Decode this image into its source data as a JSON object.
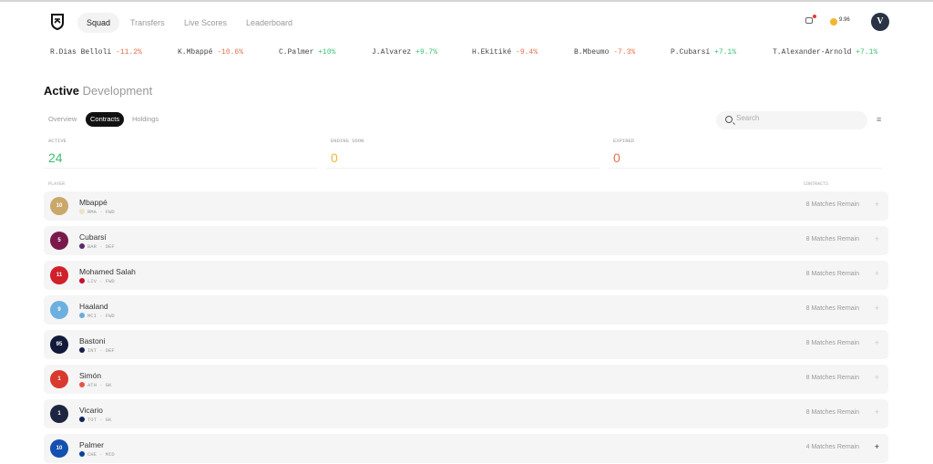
{
  "nav": {
    "tabs": [
      "Squad",
      "Transfers",
      "Live Scores",
      "Leaderboard"
    ],
    "active": "Squad",
    "balance": "9.96",
    "avatar_initial": "V"
  },
  "ticker": [
    {
      "name": "R.Dias Belloli",
      "change": "-11.2%"
    },
    {
      "name": "K.Mbappé",
      "change": "-10.6%"
    },
    {
      "name": "C.Palmer",
      "change": "+10%"
    },
    {
      "name": "J.Alvarez",
      "change": "+9.7%"
    },
    {
      "name": "H.Ekitiké",
      "change": "-9.4%"
    },
    {
      "name": "B.Mbeumo",
      "change": "-7.3%"
    },
    {
      "name": "P.Cubarsí",
      "change": "+7.1%"
    },
    {
      "name": "T.Alexander-Arnold",
      "change": "+7.1%"
    }
  ],
  "page": {
    "title_main": "Active",
    "title_sub": "Development"
  },
  "subtabs": [
    "Overview",
    "Contracts",
    "Holdings"
  ],
  "search": {
    "placeholder": "Search"
  },
  "stats": [
    {
      "label": "ACTIVE",
      "value": "24",
      "color": "#3cbf74"
    },
    {
      "label": "ENDING SOON",
      "value": "0",
      "color": "#f0b43c"
    },
    {
      "label": "EXPIRED",
      "value": "0",
      "color": "#e0714a"
    }
  ],
  "columns": {
    "player": "PLAYER",
    "contracts": "CONTRACTS"
  },
  "players": [
    {
      "name": "Mbappé",
      "meta": "RMA · FWD",
      "number": "10",
      "kit": "#c9a86a",
      "badge": "#e8e4c8",
      "contract": "8 Matches Remain"
    },
    {
      "name": "Cubarsí",
      "meta": "BAR · DEF",
      "number": "5",
      "kit": "#7a1a4a",
      "badge": "#5a2a6a",
      "contract": "8 Matches Remain"
    },
    {
      "name": "Mohamed Salah",
      "meta": "LIV · FWD",
      "number": "11",
      "kit": "#d0202a",
      "badge": "#c8102e",
      "contract": "8 Matches Remain"
    },
    {
      "name": "Haaland",
      "meta": "MCI · FWD",
      "number": "9",
      "kit": "#6cb0e0",
      "badge": "#6cabdd",
      "contract": "8 Matches Remain"
    },
    {
      "name": "Bastoni",
      "meta": "INT · DEF",
      "number": "95",
      "kit": "#111a3a",
      "badge": "#1a1f4a",
      "contract": "8 Matches Remain"
    },
    {
      "name": "Simón",
      "meta": "ATH · GK",
      "number": "1",
      "kit": "#d83a2e",
      "badge": "#e8544a",
      "contract": "8 Matches Remain"
    },
    {
      "name": "Vicario",
      "meta": "TOT · GK",
      "number": "1",
      "kit": "#1e2540",
      "badge": "#132257",
      "contract": "8 Matches Remain"
    },
    {
      "name": "Palmer",
      "meta": "CHE · MID",
      "number": "10",
      "kit": "#1450b0",
      "badge": "#034694",
      "contract": "4 Matches Remain"
    }
  ]
}
